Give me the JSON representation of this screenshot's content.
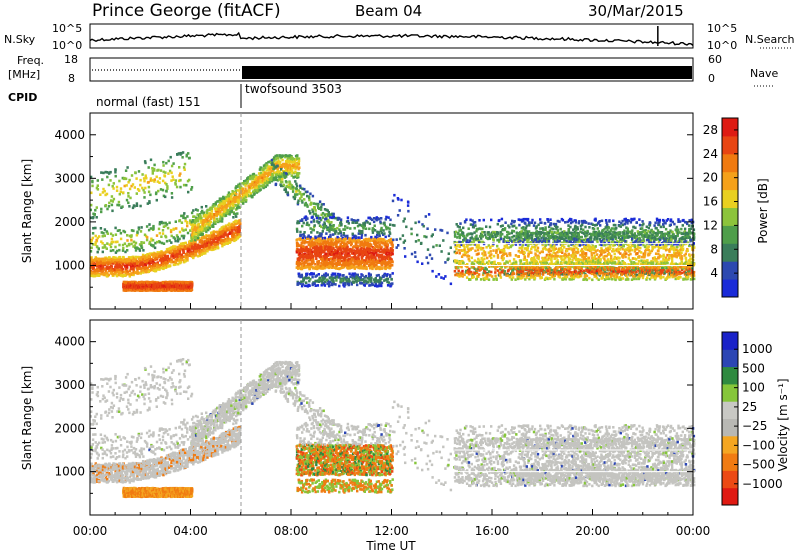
{
  "header": {
    "station": "Prince George (fitACF)",
    "beam": "Beam 04",
    "date": "30/Mar/2015"
  },
  "noise_panel": {
    "left_label": "N.Sky",
    "left_ticks": [
      "10^5",
      "10^0"
    ],
    "right_label": "N.Search",
    "right_ticks": [
      "10^5",
      "10^0"
    ]
  },
  "freq_panel": {
    "left_label_1": "Freq.",
    "left_label_2": "[MHz]",
    "left_ticks": [
      "18",
      "8"
    ],
    "right_label": "Nave",
    "right_ticks": [
      "60",
      "0"
    ]
  },
  "cpid": {
    "label": "CPID",
    "segments": [
      {
        "name": "normal (fast) 151",
        "start_hour": 0,
        "end_hour": 6
      },
      {
        "name": "twofsound 3503",
        "start_hour": 6,
        "end_hour": 24
      }
    ]
  },
  "colors": {
    "power": [
      "#1a2bd8",
      "#2d49b0",
      "#3a7d5a",
      "#4f9e4a",
      "#8cc43b",
      "#e9d020",
      "#f5a11a",
      "#f07a10",
      "#e84512",
      "#de1b12"
    ],
    "velocity": [
      "#e01a12",
      "#ec4a14",
      "#f07b12",
      "#f4a622",
      "#b8b8b4",
      "#c8c8c4",
      "#86c63a",
      "#2f8a40",
      "#2c46b4",
      "#1a22c8"
    ],
    "grey": "#c4c4c0"
  },
  "chart_data": [
    {
      "type": "heatmap",
      "title": "",
      "xlabel": "Time UT",
      "ylabel": "Slant Range [km]",
      "xlim": [
        0,
        24
      ],
      "ylim": [
        0,
        4500
      ],
      "x_ticks": [
        "00:00",
        "04:00",
        "08:00",
        "12:00",
        "16:00",
        "20:00",
        "00:00"
      ],
      "y_ticks": [
        "1000",
        "2000",
        "3000",
        "4000"
      ],
      "colorbar_label": "Power [dB]",
      "colorbar_ticks": [
        "4",
        "8",
        "12",
        "16",
        "20",
        "24",
        "28"
      ],
      "colorbar_range": [
        0,
        30
      ]
    },
    {
      "type": "heatmap",
      "title": "",
      "xlabel": "Time UT",
      "ylabel": "Slant Range [km]",
      "xlim": [
        0,
        24
      ],
      "ylim": [
        0,
        4500
      ],
      "x_ticks": [
        "00:00",
        "04:00",
        "08:00",
        "12:00",
        "16:00",
        "20:00",
        "00:00"
      ],
      "y_ticks": [
        "1000",
        "2000",
        "3000",
        "4000"
      ],
      "colorbar_label": "Velocity [m s⁻¹]",
      "colorbar_ticks": [
        "1000",
        "500",
        "100",
        "25",
        "−25",
        "−100",
        "−500",
        "−1000"
      ]
    }
  ],
  "x_axis_title": "Time UT"
}
